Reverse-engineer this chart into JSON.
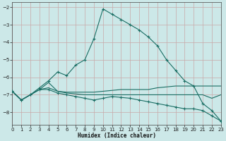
{
  "xlabel": "Humidex (Indice chaleur)",
  "bg_color": "#cce8e8",
  "grid_color": "#c8a8a8",
  "line_color": "#1a6e64",
  "xlim": [
    0,
    23
  ],
  "ylim": [
    -8.7,
    -1.7
  ],
  "yticks": [
    -8,
    -7,
    -6,
    -5,
    -4,
    -3,
    -2
  ],
  "xticks": [
    0,
    1,
    2,
    3,
    4,
    5,
    6,
    7,
    8,
    9,
    10,
    11,
    12,
    13,
    14,
    15,
    16,
    17,
    18,
    19,
    20,
    21,
    22,
    23
  ],
  "line1_x": [
    0,
    1,
    2,
    3,
    4,
    5,
    6,
    7,
    8,
    9,
    10,
    11,
    12,
    13,
    14,
    15,
    16,
    17,
    18,
    19,
    20,
    21,
    22,
    23
  ],
  "line1_y": [
    -6.8,
    -7.3,
    -7.0,
    -6.6,
    -6.2,
    -5.7,
    -5.9,
    -5.3,
    -5.0,
    -3.8,
    -2.1,
    -2.4,
    -2.7,
    -3.0,
    -3.3,
    -3.7,
    -4.2,
    -5.0,
    -5.6,
    -6.2,
    -6.5,
    -7.5,
    -7.9,
    -8.5
  ],
  "line2_x": [
    0,
    1,
    2,
    3,
    4,
    5,
    6,
    7,
    8,
    9,
    10,
    11,
    12,
    13,
    14,
    15,
    16,
    17,
    18,
    19,
    20,
    21,
    22,
    23
  ],
  "line2_y": [
    -6.8,
    -7.3,
    -7.0,
    -6.7,
    -6.6,
    -6.8,
    -6.85,
    -6.85,
    -6.85,
    -6.85,
    -6.8,
    -6.75,
    -6.7,
    -6.7,
    -6.7,
    -6.7,
    -6.6,
    -6.55,
    -6.5,
    -6.5,
    -6.5,
    -6.5,
    -6.5,
    -6.5
  ],
  "line3_x": [
    0,
    1,
    2,
    3,
    4,
    5,
    6,
    7,
    8,
    9,
    10,
    11,
    12,
    13,
    14,
    15,
    16,
    17,
    18,
    19,
    20,
    21,
    22,
    23
  ],
  "line3_y": [
    -6.8,
    -7.3,
    -7.0,
    -6.7,
    -6.3,
    -6.8,
    -6.9,
    -6.95,
    -7.0,
    -7.0,
    -7.0,
    -7.0,
    -7.0,
    -7.0,
    -7.0,
    -7.0,
    -7.0,
    -7.0,
    -7.0,
    -7.0,
    -7.0,
    -7.0,
    -7.2,
    -7.0
  ],
  "line4_x": [
    0,
    1,
    2,
    3,
    4,
    5,
    6,
    7,
    8,
    9,
    10,
    11,
    12,
    13,
    14,
    15,
    16,
    17,
    18,
    19,
    20,
    21,
    22,
    23
  ],
  "line4_y": [
    -6.8,
    -7.3,
    -7.0,
    -6.7,
    -6.7,
    -6.9,
    -7.0,
    -7.1,
    -7.2,
    -7.3,
    -7.2,
    -7.1,
    -7.15,
    -7.2,
    -7.3,
    -7.4,
    -7.5,
    -7.6,
    -7.7,
    -7.8,
    -7.8,
    -7.9,
    -8.2,
    -8.5
  ]
}
